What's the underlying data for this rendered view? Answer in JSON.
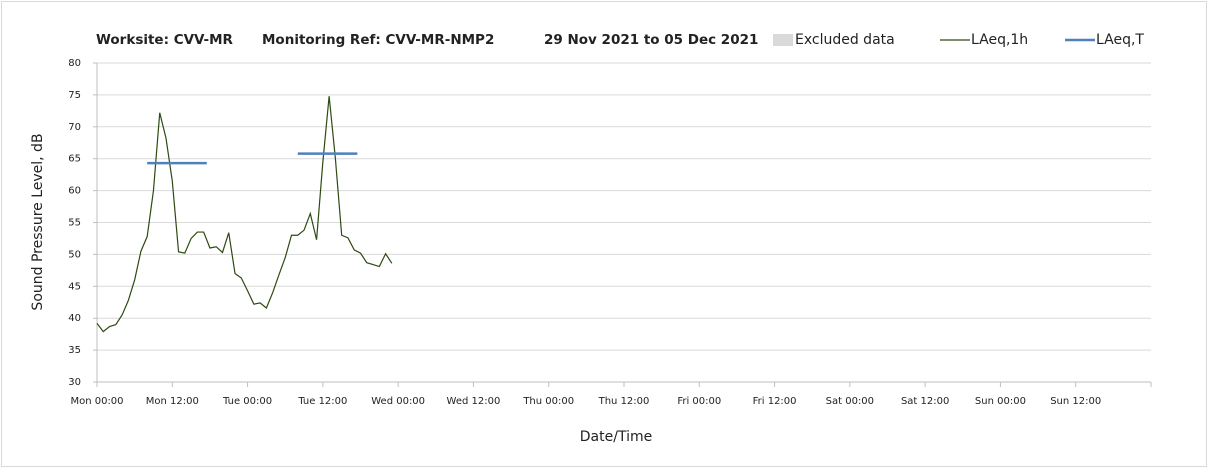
{
  "chart_data": {
    "type": "line",
    "title": [
      "Worksite: CVV-MR",
      "Monitoring Ref: CVV-MR-NMP2",
      "29 Nov 2021 to 05 Dec 2021"
    ],
    "xlabel": "Date/Time",
    "ylabel": "Sound Pressure Level, dB",
    "xlim": [
      0,
      168
    ],
    "xticks": [
      {
        "value": 0,
        "label": "Mon 00:00"
      },
      {
        "value": 12,
        "label": "Mon 12:00"
      },
      {
        "value": 24,
        "label": "Tue 00:00"
      },
      {
        "value": 36,
        "label": "Tue 12:00"
      },
      {
        "value": 48,
        "label": "Wed 00:00"
      },
      {
        "value": 60,
        "label": "Wed 12:00"
      },
      {
        "value": 72,
        "label": "Thu 00:00"
      },
      {
        "value": 84,
        "label": "Thu 12:00"
      },
      {
        "value": 96,
        "label": "Fri 00:00"
      },
      {
        "value": 108,
        "label": "Fri 12:00"
      },
      {
        "value": 120,
        "label": "Sat 00:00"
      },
      {
        "value": 132,
        "label": "Sat 12:00"
      },
      {
        "value": 144,
        "label": "Sun 00:00"
      },
      {
        "value": 156,
        "label": "Sun 12:00"
      }
    ],
    "ylim": [
      30,
      80
    ],
    "yticks": [
      30,
      35,
      40,
      45,
      50,
      55,
      60,
      65,
      70,
      75,
      80
    ],
    "grid": true,
    "series": [
      {
        "name": "Excluded data",
        "color": "#d9d9d9",
        "kind": "area",
        "x": [],
        "values": []
      },
      {
        "name": "LAeq,1h",
        "color": "#2e4a12",
        "kind": "line",
        "x": [
          0,
          1,
          2,
          3,
          4,
          5,
          6,
          7,
          8,
          9,
          10,
          11,
          12,
          13,
          14,
          15,
          16,
          17,
          18,
          19,
          20,
          21,
          22,
          23,
          24,
          25,
          26,
          27,
          28,
          29,
          30,
          31,
          32,
          33,
          34,
          35,
          36,
          37,
          38,
          39,
          40,
          41,
          42,
          43,
          44,
          45,
          46,
          47
        ],
        "values": [
          39.2,
          37.9,
          38.7,
          39.0,
          40.5,
          42.8,
          46.0,
          50.5,
          52.8,
          60.0,
          72.2,
          68.2,
          61.5,
          50.4,
          50.2,
          52.5,
          53.5,
          53.5,
          51.0,
          51.2,
          50.3,
          53.4,
          47.0,
          46.3,
          44.3,
          42.2,
          42.4,
          41.6,
          44.0,
          46.8,
          49.5,
          53.0,
          53.0,
          53.8,
          56.4,
          52.3,
          64.5,
          74.8,
          65.0,
          53.0,
          52.6,
          50.7,
          50.2,
          48.7,
          48.4,
          48.1,
          50.1,
          48.6
        ]
      },
      {
        "name": "LAeq,T",
        "color": "#4f81bd",
        "kind": "line",
        "x": [
          8,
          17.5,
          null,
          32,
          41.5
        ],
        "values": [
          64.3,
          64.3,
          null,
          65.8,
          65.8
        ]
      }
    ]
  }
}
